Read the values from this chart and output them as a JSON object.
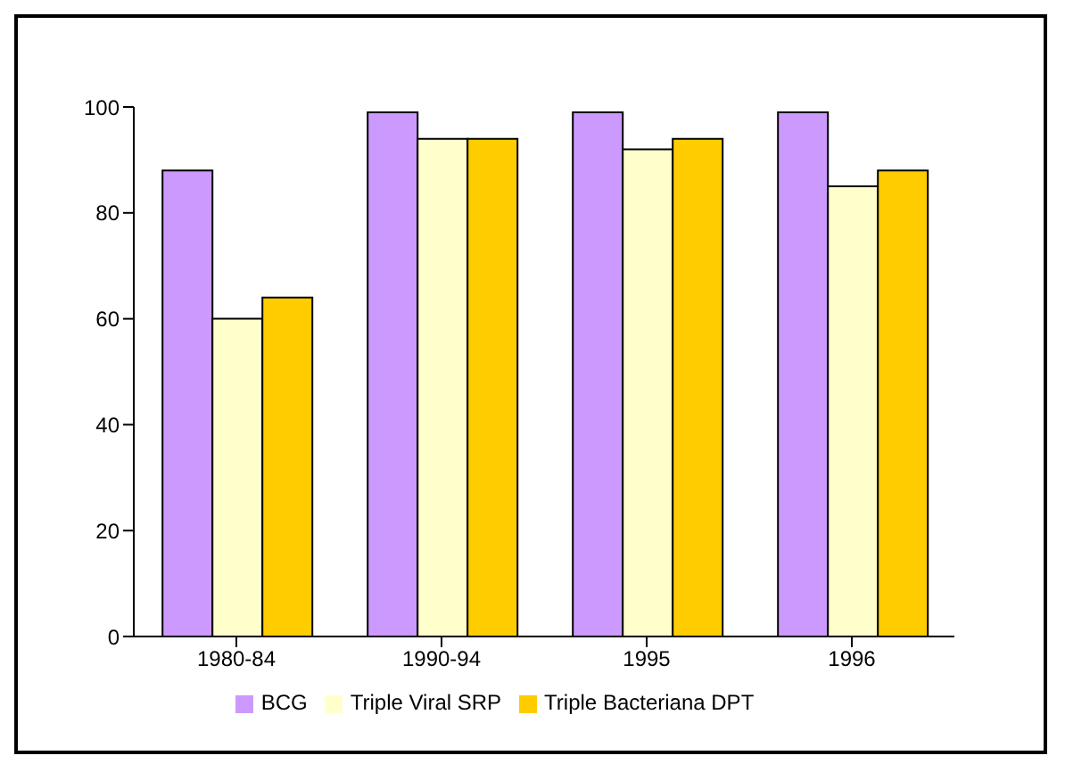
{
  "chart_data": {
    "type": "bar",
    "categories": [
      "1980-84",
      "1990-94",
      "1995",
      "1996"
    ],
    "series": [
      {
        "name": "BCG",
        "color": "#cc99ff",
        "values": [
          88,
          99,
          99,
          99
        ]
      },
      {
        "name": "Triple Viral SRP",
        "color": "#ffffcc",
        "values": [
          60,
          94,
          92,
          85
        ]
      },
      {
        "name": "Triple Bacteriana DPT",
        "color": "#ffcc00",
        "values": [
          64,
          94,
          94,
          88
        ]
      }
    ],
    "ylim": [
      0,
      100
    ],
    "yticks": [
      0,
      20,
      40,
      60,
      80,
      100
    ],
    "grid": false,
    "legend": "bottom"
  }
}
